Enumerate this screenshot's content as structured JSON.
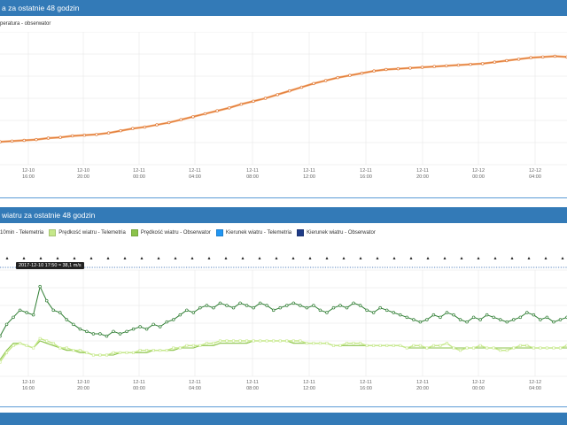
{
  "panels": [
    {
      "title": "a za ostatnie 48 godzin"
    },
    {
      "title": "wiatru za ostatnie 48 godzin"
    }
  ],
  "temp_legend": "peratura - obserwator",
  "wind_legend": [
    {
      "label": "10min - Telemetria",
      "color": "#ffffff"
    },
    {
      "label": "Prędkość wiatru - Telemetria",
      "color": "#c5e88a"
    },
    {
      "label": "Prędkość wiatru - Obserwator",
      "color": "#8bc34a"
    },
    {
      "label": "Kierunek wiatru - Telemetria",
      "color": "#2196f3"
    },
    {
      "label": "Kierunek wiatru - Obserwator",
      "color": "#1f3c88"
    }
  ],
  "tooltip": "2017-12-10 17:50 ≈ 38,1 m/s",
  "colors": {
    "header": "#337ab7",
    "temp_line": "#e07b39",
    "gust_line": "#2e7d32",
    "speed_tele": "#c5e88a",
    "speed_obs": "#8bc34a",
    "dir_marker": "#1e5aa8"
  },
  "chart_data": [
    {
      "type": "line",
      "x_tick_dates": [
        "12-10",
        "12-10",
        "12-11",
        "12-11",
        "12-11",
        "12-11",
        "12-11",
        "12-11",
        "12-12",
        "12-12"
      ],
      "x_tick_times": [
        "16:00",
        "20:00",
        "00:00",
        "04:00",
        "08:00",
        "12:00",
        "16:00",
        "20:00",
        "00:00",
        "04:00"
      ],
      "series": [
        {
          "name": "peratura - obserwator",
          "values": [
            -4.9,
            -4.8,
            -4.7,
            -4.6,
            -4.4,
            -4.3,
            -4.1,
            -4.0,
            -3.9,
            -3.7,
            -3.4,
            -3.1,
            -2.9,
            -2.6,
            -2.3,
            -1.9,
            -1.5,
            -1.1,
            -0.7,
            -0.3,
            0.2,
            0.6,
            1.0,
            1.5,
            2.0,
            2.5,
            3.0,
            3.4,
            3.8,
            4.1,
            4.4,
            4.7,
            4.9,
            5.0,
            5.1,
            5.2,
            5.3,
            5.4,
            5.5,
            5.6,
            5.7,
            5.9,
            6.1,
            6.3,
            6.5,
            6.6,
            6.7,
            6.6
          ]
        }
      ]
    },
    {
      "type": "line",
      "x_tick_dates": [
        "12-10",
        "12-10",
        "12-11",
        "12-11",
        "12-11",
        "12-11",
        "12-11",
        "12-11",
        "12-12",
        "12-12"
      ],
      "x_tick_times": [
        "16:00",
        "20:00",
        "00:00",
        "04:00",
        "08:00",
        "12:00",
        "16:00",
        "20:00",
        "00:00",
        "04:00"
      ],
      "series": [
        {
          "name": "10min - Telemetria",
          "values": [
            17,
            22,
            25,
            28,
            27,
            26,
            38,
            32,
            28,
            27,
            24,
            22,
            20,
            19,
            18,
            18,
            17,
            19,
            18,
            19,
            20,
            21,
            20,
            22,
            21,
            23,
            24,
            26,
            28,
            27,
            29,
            30,
            29,
            31,
            30,
            29,
            31,
            30,
            29,
            31,
            30,
            28,
            29,
            30,
            31,
            30,
            29,
            30,
            28,
            27,
            29,
            30,
            29,
            31,
            30,
            28,
            27,
            29,
            28,
            27,
            26,
            25,
            24,
            23,
            24,
            26,
            25,
            27,
            26,
            24,
            23,
            25,
            24,
            26,
            25,
            24,
            23,
            24,
            25,
            27,
            26,
            24,
            25,
            23,
            24,
            25
          ]
        },
        {
          "name": "Prędkość wiatru - Telemetria",
          "values": [
            6,
            10,
            13,
            14,
            13,
            12,
            16,
            15,
            14,
            12,
            12,
            11,
            11,
            10,
            9,
            9,
            9,
            10,
            10,
            10,
            10,
            11,
            11,
            11,
            11,
            11,
            12,
            12,
            13,
            13,
            13,
            14,
            14,
            15,
            15,
            15,
            15,
            15,
            15,
            15,
            15,
            15,
            15,
            15,
            15,
            15,
            14,
            14,
            14,
            14,
            13,
            13,
            14,
            14,
            14,
            13,
            13,
            13,
            13,
            13,
            13,
            12,
            13,
            13,
            12,
            13,
            13,
            14,
            12,
            11,
            12,
            12,
            13,
            12,
            12,
            11,
            11,
            12,
            13,
            13,
            12,
            12,
            12,
            12,
            12,
            13
          ]
        },
        {
          "name": "Prędkość wiatru - Obserwator",
          "values": [
            7,
            11,
            14,
            14,
            13,
            12,
            15,
            14,
            13,
            12,
            11,
            11,
            10,
            10,
            9,
            9,
            9,
            9,
            10,
            10,
            10,
            10,
            10,
            11,
            11,
            11,
            11,
            12,
            12,
            12,
            13,
            13,
            13,
            14,
            14,
            14,
            14,
            14,
            15,
            15,
            15,
            15,
            15,
            15,
            14,
            14,
            14,
            14,
            14,
            14,
            13,
            13,
            13,
            13,
            13,
            13,
            13,
            13,
            13,
            13,
            13,
            12,
            12,
            12,
            12,
            12,
            12,
            12,
            12,
            12,
            12,
            12,
            12,
            12,
            12,
            12,
            12,
            12,
            12,
            12,
            12,
            12,
            12,
            12,
            12,
            12
          ]
        }
      ]
    }
  ]
}
